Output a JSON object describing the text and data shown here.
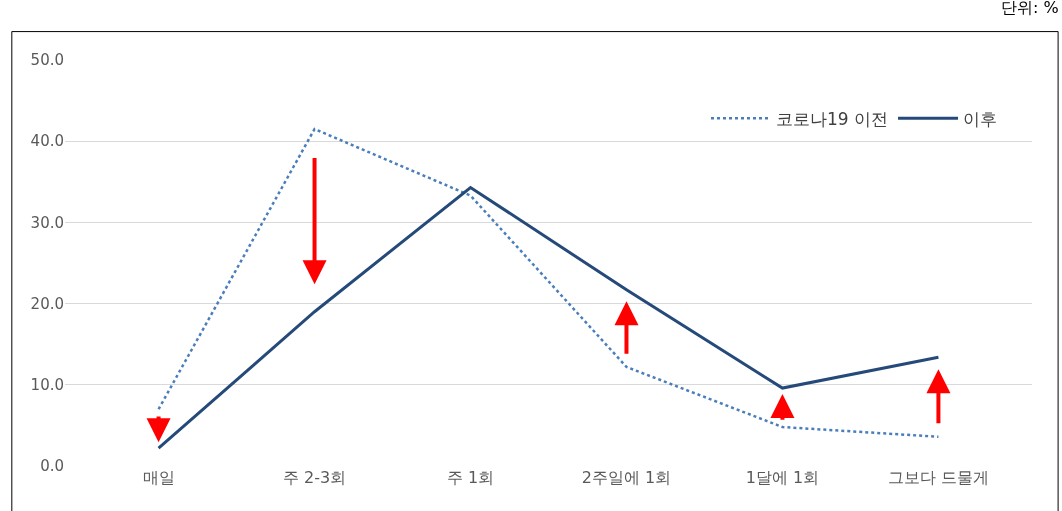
{
  "chart_data": {
    "type": "line",
    "categories": [
      "매일",
      "주 2-3회",
      "주 1회",
      "2주일에 1회",
      "1달에 1회",
      "그보다 드물게"
    ],
    "series": [
      {
        "name": "코로나19 이전",
        "color": "#4a7ebb",
        "line_style": "dotted",
        "values": [
          7.0,
          41.5,
          33.3,
          12.2,
          4.8,
          3.6
        ]
      },
      {
        "name": "이후",
        "color": "#254a7a",
        "line_style": "solid",
        "values": [
          2.2,
          19.0,
          34.3,
          21.7,
          9.6,
          13.4
        ]
      }
    ],
    "ylim": [
      0,
      50
    ],
    "yticks": [
      {
        "value": 0,
        "label": "0.0"
      },
      {
        "value": 10,
        "label": "10.0"
      },
      {
        "value": 20,
        "label": "20.0"
      },
      {
        "value": 30,
        "label": "30.0"
      },
      {
        "value": 40,
        "label": "40.0"
      },
      {
        "value": 50,
        "label": "50.0"
      }
    ],
    "grid": "y",
    "legend": "top right",
    "marker": "none",
    "annotations": [
      "단위: %"
    ]
  }
}
